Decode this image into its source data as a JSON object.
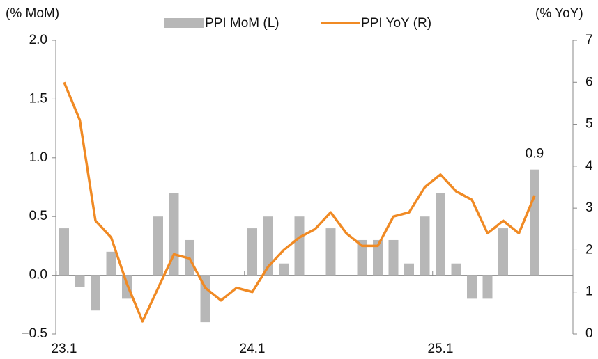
{
  "chart_data": {
    "type": "bar_line",
    "y_label": "(% MoM)",
    "y2_label": "(% YoY)",
    "categories": [
      "23.1",
      null,
      null,
      null,
      null,
      null,
      null,
      null,
      null,
      null,
      null,
      null,
      "24.1",
      null,
      null,
      null,
      null,
      null,
      null,
      null,
      null,
      null,
      null,
      null,
      "25.1",
      null,
      null,
      null,
      null,
      null,
      null
    ],
    "series": [
      {
        "name": "PPI MoM (L)",
        "type": "bar",
        "color": "#b7b7b7",
        "values": [
          0.4,
          -0.1,
          -0.3,
          0.2,
          -0.2,
          0,
          0.5,
          0.7,
          0.3,
          -0.4,
          0,
          0,
          0.4,
          0.5,
          0.1,
          0.5,
          0,
          0.4,
          0,
          0.3,
          0.3,
          0.3,
          0.1,
          0.5,
          0.7,
          0.1,
          -0.2,
          -0.2,
          0.4,
          0,
          0.9
        ]
      },
      {
        "name": "PPI YoY (R)",
        "type": "line",
        "axis": "y2",
        "color": "#f08a24",
        "values": [
          6.0,
          5.1,
          2.7,
          2.3,
          1.2,
          0.3,
          1.1,
          1.9,
          1.8,
          1.1,
          0.8,
          1.1,
          1.0,
          1.6,
          2.0,
          2.3,
          2.5,
          2.9,
          2.4,
          2.1,
          2.1,
          2.8,
          2.9,
          3.5,
          3.8,
          3.4,
          3.2,
          2.4,
          2.7,
          2.4,
          3.3
        ]
      }
    ],
    "labeled_points": [
      30
    ],
    "ylim": [
      -0.5,
      2.0
    ],
    "yticks": [
      {
        "value": -0.5,
        "label": "−0.5"
      },
      {
        "value": 0,
        "label": "0.0"
      },
      {
        "value": 0.5,
        "label": "0.5"
      },
      {
        "value": 1.0,
        "label": "1.0"
      },
      {
        "value": 1.5,
        "label": "1.5"
      },
      {
        "value": 2.0,
        "label": "2.0"
      }
    ],
    "y2lim": [
      0,
      7
    ],
    "y2ticks": [
      0,
      1,
      2,
      3,
      4,
      5,
      6,
      7
    ],
    "legend": "top"
  }
}
